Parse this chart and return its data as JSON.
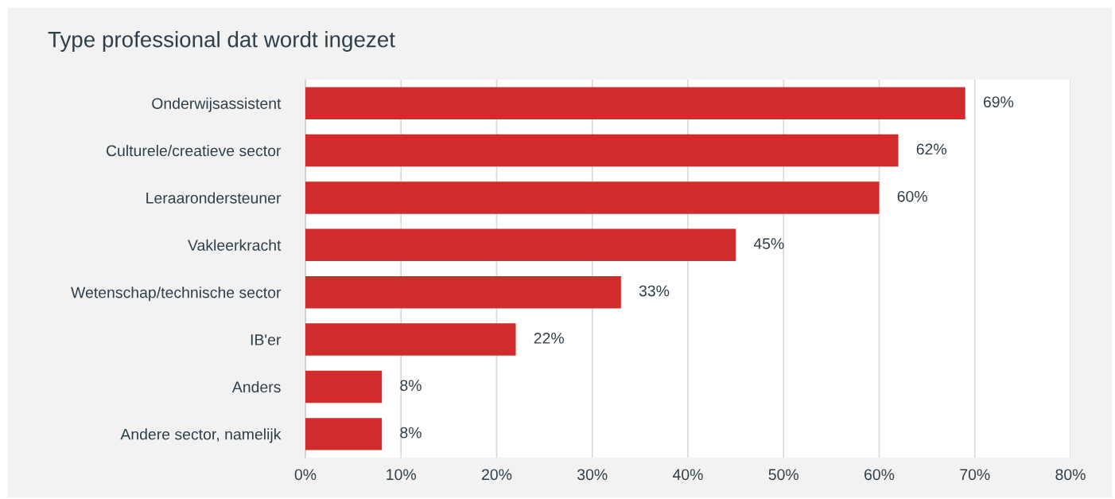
{
  "chart_data": {
    "type": "bar",
    "orientation": "horizontal",
    "title": "Type professional dat wordt ingezet",
    "categories": [
      "Onderwijsassistent",
      "Culturele/creatieve sector",
      "Leraarondersteuner",
      "Vakleerkracht",
      "Wetenschap/technische sector",
      "IB'er",
      "Anders",
      "Andere sector, namelijk"
    ],
    "values": [
      69,
      62,
      60,
      45,
      33,
      22,
      8,
      8
    ],
    "color": "#d22b2b",
    "value_labels": [
      "69%",
      "62%",
      "60%",
      "45%",
      "33%",
      "22%",
      "8%",
      "8%"
    ],
    "xlim": [
      0,
      80
    ],
    "xticks": [
      {
        "value": 0,
        "label": "0%"
      },
      {
        "value": 10,
        "label": "10%"
      },
      {
        "value": 20,
        "label": "20%"
      },
      {
        "value": 30,
        "label": "30%"
      },
      {
        "value": 40,
        "label": "40%"
      },
      {
        "value": 50,
        "label": "50%"
      },
      {
        "value": 60,
        "label": "60%"
      },
      {
        "value": 70,
        "label": "70%"
      },
      {
        "value": 80,
        "label": "80%"
      }
    ],
    "grid": "x",
    "legend": false
  }
}
